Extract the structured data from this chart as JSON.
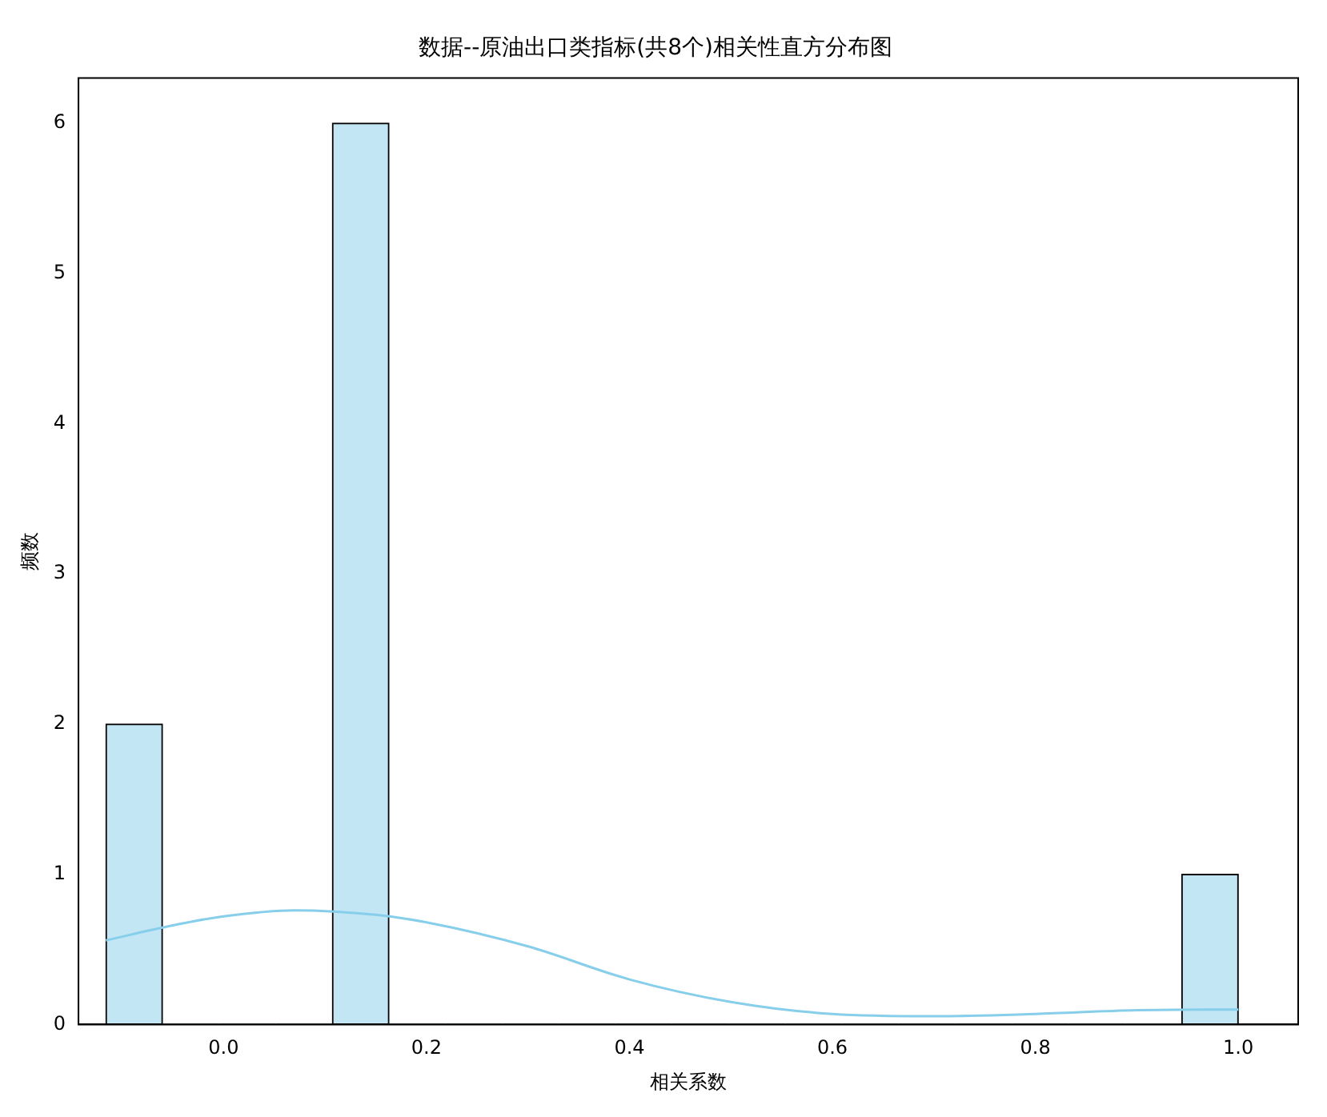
{
  "chart_data": {
    "type": "histogram",
    "title": "数据--原油出口类指标(共8个)相关性直方分布图",
    "xlabel": "相关系数",
    "ylabel": "频数",
    "bins": [
      -0.116,
      -0.0602,
      -0.0044,
      0.0514,
      0.1072,
      0.163,
      0.2188,
      0.2746,
      0.3304,
      0.3862,
      0.442,
      0.4978,
      0.5536,
      0.6094,
      0.6652,
      0.721,
      0.7768,
      0.8326,
      0.8884,
      0.9442,
      1.0
    ],
    "values": [
      2,
      0,
      0,
      0,
      6,
      0,
      0,
      0,
      0,
      0,
      0,
      0,
      0,
      0,
      0,
      0,
      0,
      0,
      0,
      1
    ],
    "color": "#c3e6f5",
    "series": [
      {
        "type": "line",
        "color": "#87ceeb",
        "x": [
          -0.116,
          -0.05,
          0.0,
          0.07,
          0.15,
          0.2,
          0.3,
          0.4,
          0.5,
          0.6,
          0.7,
          0.8,
          0.9,
          1.0
        ],
        "values": [
          0.56,
          0.66,
          0.72,
          0.76,
          0.73,
          0.68,
          0.52,
          0.3,
          0.15,
          0.07,
          0.055,
          0.07,
          0.095,
          0.1
        ]
      }
    ],
    "xlim": [
      -0.143,
      1.059
    ],
    "ylim": [
      0,
      6.3
    ],
    "xticks": [
      {
        "value": 0,
        "label": "0.0"
      },
      {
        "value": 0.2,
        "label": "0.2"
      },
      {
        "value": 0.4,
        "label": "0.4"
      },
      {
        "value": 0.6,
        "label": "0.6"
      },
      {
        "value": 0.8,
        "label": "0.8"
      },
      {
        "value": 1,
        "label": "1.0"
      }
    ],
    "yticks": [
      0,
      1,
      2,
      3,
      4,
      5,
      6
    ],
    "grid": false,
    "legend": false
  }
}
